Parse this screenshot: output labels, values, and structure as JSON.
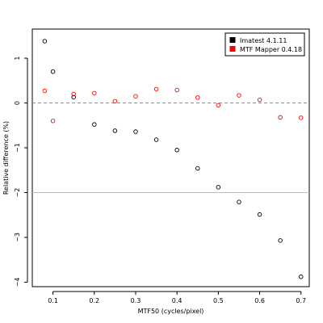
{
  "chart_data": {
    "type": "scatter",
    "title": "",
    "xlabel": "MTF50 (cycles/pixel)",
    "ylabel": "Relative difference (%)",
    "xlim": [
      0.05,
      0.72
    ],
    "ylim": [
      -4.1,
      1.65
    ],
    "xticks": [
      0.1,
      0.2,
      0.3,
      0.4,
      0.5,
      0.6,
      0.7
    ],
    "xtick_labels": [
      "0.1",
      "0.2",
      "0.3",
      "0.4",
      "0.5",
      "0.6",
      "0.7"
    ],
    "yticks": [
      1,
      0,
      -1,
      -2,
      -3,
      -4
    ],
    "ytick_labels": [
      "1",
      "0",
      "−1",
      "−2",
      "−3",
      "−4"
    ],
    "reference_lines": [
      {
        "y": 0,
        "color": "#8080ff",
        "style": "dashed"
      },
      {
        "y": -2,
        "color": "#bebebe",
        "style": "solid"
      }
    ],
    "legend_position": "top-right",
    "series": [
      {
        "name": "Imatest 4.1.11",
        "color": "#000000",
        "points": [
          [
            0.08,
            1.38
          ],
          [
            0.1,
            0.7
          ],
          [
            0.15,
            0.13
          ],
          [
            0.2,
            -0.48
          ],
          [
            0.25,
            -0.62
          ],
          [
            0.3,
            -0.64
          ],
          [
            0.35,
            -0.82
          ],
          [
            0.4,
            -1.05
          ],
          [
            0.45,
            -1.46
          ],
          [
            0.5,
            -1.88
          ],
          [
            0.55,
            -2.21
          ],
          [
            0.6,
            -2.49
          ],
          [
            0.65,
            -3.07
          ],
          [
            0.7,
            -3.88
          ]
        ]
      },
      {
        "name": "MTF Mapper 0.4.18",
        "color": "#ff0000",
        "points": [
          [
            0.08,
            0.27
          ],
          [
            0.1,
            -0.4
          ],
          [
            0.15,
            0.2
          ],
          [
            0.2,
            0.22
          ],
          [
            0.25,
            0.04
          ],
          [
            0.3,
            0.15
          ],
          [
            0.35,
            0.31
          ],
          [
            0.4,
            0.29
          ],
          [
            0.45,
            0.12
          ],
          [
            0.5,
            -0.05
          ],
          [
            0.55,
            0.17
          ],
          [
            0.6,
            0.07
          ],
          [
            0.65,
            -0.32
          ],
          [
            0.7,
            -0.33
          ]
        ]
      }
    ]
  }
}
